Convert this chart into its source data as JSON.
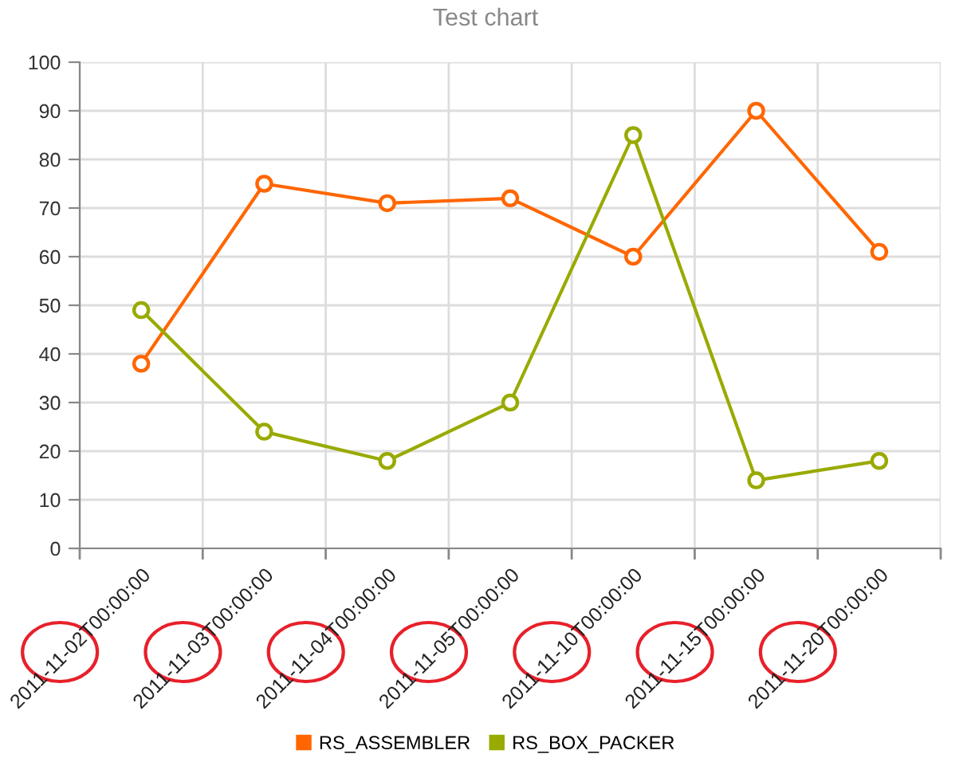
{
  "chart_data": {
    "type": "line",
    "title": "Test chart",
    "categories": [
      "2011-11-02T00:00:00",
      "2011-11-03T00:00:00",
      "2011-11-04T00:00:00",
      "2011-11-05T00:00:00",
      "2011-11-10T00:00:00",
      "2011-11-15T00:00:00",
      "2011-11-20T00:00:00"
    ],
    "series": [
      {
        "name": "RS_ASSEMBLER",
        "color": "#ff6600",
        "values": [
          38,
          75,
          71,
          72,
          60,
          90,
          61
        ]
      },
      {
        "name": "RS_BOX_PACKER",
        "color": "#99aa00",
        "values": [
          49,
          24,
          18,
          30,
          85,
          14,
          18
        ]
      }
    ],
    "ylim": [
      0,
      100
    ],
    "yticks": [
      0,
      10,
      20,
      30,
      40,
      50,
      60,
      70,
      80,
      90,
      100
    ],
    "grid": true,
    "legend": "bottom",
    "marker": "circle"
  }
}
